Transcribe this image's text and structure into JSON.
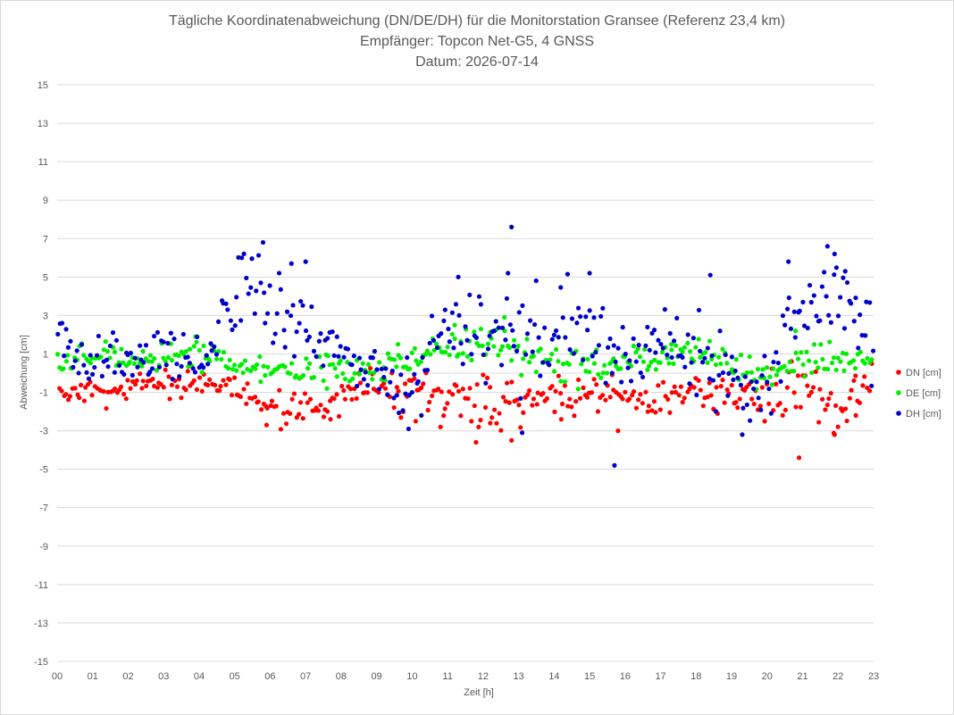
{
  "chart_data": {
    "type": "scatter",
    "title_lines": [
      "Tägliche Koordinatenabweichung (DN/DE/DH) für die Monitorstation Gransee (Referenz 23,4 km)",
      "Empfänger: Topcon Net-G5, 4 GNSS",
      "Datum: 2026-07-14"
    ],
    "xlabel": "Zeit [h]",
    "ylabel": "Abweichung [cm]",
    "xlim": [
      0,
      23
    ],
    "ylim": [
      -15,
      15
    ],
    "x_ticks": [
      "00",
      "01",
      "02",
      "03",
      "04",
      "05",
      "06",
      "07",
      "08",
      "09",
      "10",
      "11",
      "12",
      "13",
      "14",
      "15",
      "16",
      "17",
      "18",
      "19",
      "20",
      "21",
      "22",
      "23"
    ],
    "y_ticks": [
      15,
      13,
      11,
      9,
      7,
      5,
      3,
      1,
      -1,
      -3,
      -5,
      -7,
      -9,
      -11,
      -13,
      -15
    ],
    "grid": "horizontal",
    "legend_position": "right",
    "samples_per_hour": 16,
    "series": [
      {
        "name": "DN [cm]",
        "color": "#ff0000",
        "trend": [
          -1.0,
          -1.0,
          -1.0,
          -0.7,
          -0.5,
          -0.8,
          -1.8,
          -1.8,
          -1.5,
          -0.8,
          -0.9,
          -1.4,
          -1.5,
          -1.6,
          -1.2,
          -1.1,
          -1.2,
          -1.3,
          -1.0,
          -1.1,
          -1.4,
          -0.9,
          -1.8,
          -0.7
        ],
        "spread": [
          0.3,
          0.35,
          0.35,
          0.4,
          0.4,
          0.35,
          0.35,
          0.45,
          0.5,
          0.5,
          0.55,
          0.6,
          0.7,
          0.65,
          0.6,
          0.5,
          0.5,
          0.45,
          0.45,
          0.5,
          0.6,
          0.8,
          0.8,
          0.6
        ],
        "outliers": [
          [
            5.9,
            -2.7
          ],
          [
            7.7,
            -2.4
          ],
          [
            10.1,
            -2.5
          ],
          [
            10.8,
            -2.8
          ],
          [
            11.8,
            -3.6
          ],
          [
            12.8,
            -3.5
          ],
          [
            15.8,
            -3.0
          ],
          [
            20.9,
            -4.4
          ],
          [
            21.9,
            -3.2
          ],
          [
            22.5,
            -2.2
          ],
          [
            12.2,
            -2.6
          ],
          [
            14.2,
            -2.4
          ]
        ]
      },
      {
        "name": "DE [cm]",
        "color": "#00ee00",
        "trend": [
          0.5,
          0.9,
          0.7,
          1.0,
          1.1,
          0.3,
          0.1,
          0.2,
          0.3,
          0.2,
          0.6,
          1.3,
          2.0,
          1.0,
          0.7,
          0.4,
          0.4,
          0.9,
          1.1,
          0.6,
          -0.3,
          0.9,
          0.7,
          0.8
        ],
        "spread": [
          0.3,
          0.3,
          0.35,
          0.35,
          0.4,
          0.3,
          0.3,
          0.3,
          0.35,
          0.35,
          0.4,
          0.5,
          0.55,
          0.5,
          0.5,
          0.5,
          0.4,
          0.4,
          0.45,
          0.5,
          0.5,
          0.6,
          0.45,
          0.4
        ],
        "outliers": [
          [
            7.6,
            -0.8
          ],
          [
            11.2,
            2.5
          ],
          [
            12.6,
            2.9
          ],
          [
            20.8,
            2.2
          ],
          [
            9.6,
            1.5
          ],
          [
            3.9,
            1.9
          ],
          [
            17.3,
            1.5
          ]
        ]
      },
      {
        "name": "DH [cm]",
        "color": "#0000cc",
        "trend": [
          1.3,
          0.6,
          0.7,
          1.3,
          0.3,
          3.8,
          3.8,
          2.2,
          0.8,
          0.1,
          -0.6,
          2.7,
          2.7,
          1.8,
          2.2,
          2.1,
          0.5,
          1.8,
          1.6,
          -0.3,
          -0.4,
          4.0,
          4.5,
          1.5
        ],
        "spread": [
          0.8,
          0.8,
          0.6,
          0.9,
          0.7,
          1.2,
          1.2,
          1.1,
          0.8,
          0.6,
          0.8,
          1.2,
          1.2,
          1.4,
          1.1,
          1.1,
          1.0,
          0.9,
          1.1,
          0.9,
          0.8,
          1.1,
          1.1,
          1.1
        ],
        "outliers": [
          [
            5.8,
            6.8
          ],
          [
            12.8,
            7.6
          ],
          [
            21.7,
            6.6
          ],
          [
            21.9,
            6.2
          ],
          [
            15.7,
            -4.8
          ],
          [
            13.1,
            -3.1
          ],
          [
            19.3,
            -3.2
          ],
          [
            9.9,
            -2.9
          ],
          [
            6.6,
            5.7
          ],
          [
            7.0,
            5.8
          ],
          [
            5.2,
            6.0
          ],
          [
            11.3,
            5.0
          ],
          [
            12.7,
            5.2
          ],
          [
            15.0,
            5.2
          ],
          [
            18.4,
            5.1
          ],
          [
            20.6,
            5.8
          ],
          [
            22.2,
            5.3
          ]
        ]
      }
    ]
  }
}
